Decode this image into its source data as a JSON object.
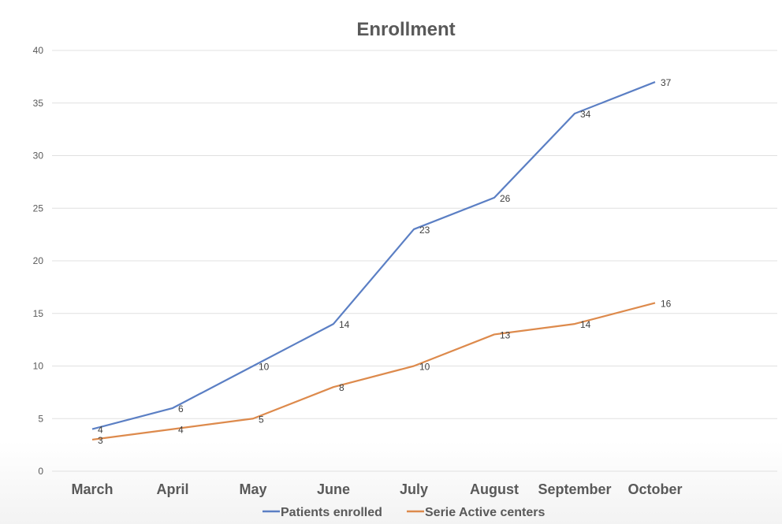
{
  "chart_data": {
    "type": "line",
    "title": "Enrollment",
    "categories": [
      "March",
      "April",
      "May",
      "June",
      "July",
      "August",
      "September",
      "October"
    ],
    "series": [
      {
        "name": "Patients enrolled",
        "color": "#5b7fc4",
        "values": [
          4,
          6,
          10,
          14,
          23,
          26,
          34,
          37
        ]
      },
      {
        "name": "Serie Active centers",
        "color": "#dd8a4c",
        "values": [
          3,
          4,
          5,
          8,
          10,
          13,
          14,
          16
        ]
      }
    ],
    "ylim": [
      0,
      40
    ],
    "yticks": [
      0,
      5,
      10,
      15,
      20,
      25,
      30,
      35,
      40
    ],
    "grid": true,
    "legend_position": "bottom",
    "data_labels": true
  }
}
